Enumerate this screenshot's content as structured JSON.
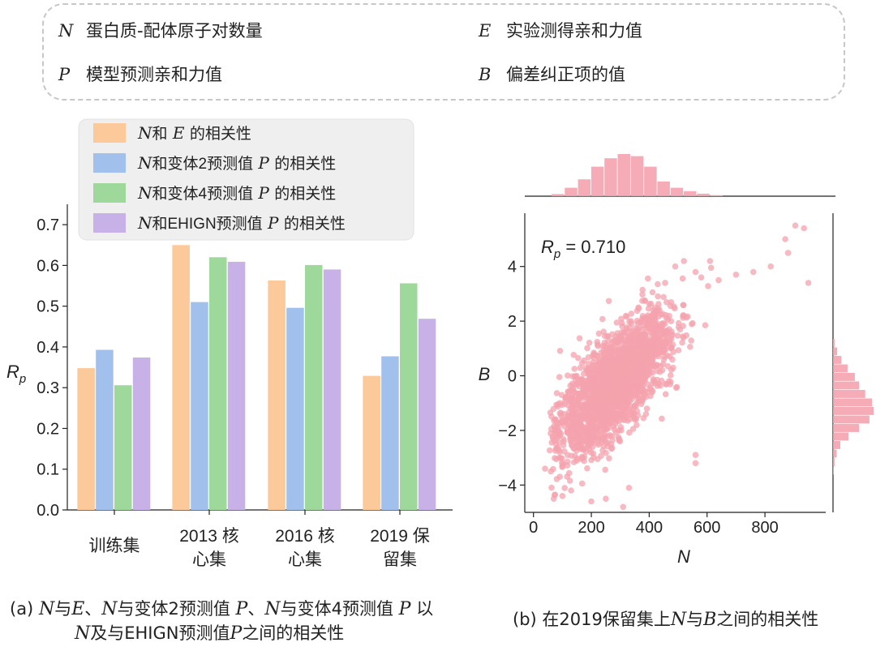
{
  "definitions": [
    {
      "symbol": "N",
      "text": "蛋白质-配体原子对数量"
    },
    {
      "symbol": "E",
      "text": "实验测得亲和力值"
    },
    {
      "symbol": "P",
      "text": "模型预测亲和力值"
    },
    {
      "symbol": "B",
      "text": "偏差纠正项的值"
    }
  ],
  "colors": {
    "orange": "#fcc99a",
    "blue": "#a1c0ec",
    "green": "#9ed89a",
    "purple": "#c7b1e6",
    "pink": "#f4a3ae"
  },
  "chart_data": [
    {
      "type": "bar",
      "ylabel": "R_p",
      "ylim": [
        0,
        0.75
      ],
      "yticks": [
        "0.0",
        "0.1",
        "0.2",
        "0.3",
        "0.4",
        "0.5",
        "0.6",
        "0.7"
      ],
      "categories": [
        {
          "line1": "训练集",
          "line2": ""
        },
        {
          "line1": "2013 核",
          "line2": "心集"
        },
        {
          "line1": "2016 核",
          "line2": "心集"
        },
        {
          "line1": "2019 保",
          "line2": "留集"
        }
      ],
      "series": [
        {
          "name": "和",
          "var1": "N",
          "var2": "E",
          "mid": "",
          "suffix": "的相关性",
          "color": "#fcc99a",
          "values": [
            0.348,
            0.65,
            0.563,
            0.329
          ]
        },
        {
          "name": "和变体2预测值",
          "var1": "N",
          "var2": "P",
          "mid": "",
          "suffix": "的相关性",
          "color": "#a1c0ec",
          "values": [
            0.393,
            0.51,
            0.496,
            0.377
          ]
        },
        {
          "name": "和变体4预测值",
          "var1": "N",
          "var2": "P",
          "mid": "",
          "suffix": "的相关性",
          "color": "#9ed89a",
          "values": [
            0.306,
            0.62,
            0.601,
            0.556
          ]
        },
        {
          "name": "和EHIGN预测值",
          "var1": "N",
          "var2": "P",
          "mid": "",
          "suffix": "的相关性",
          "color": "#c7b1e6",
          "values": [
            0.374,
            0.609,
            0.59,
            0.469
          ]
        }
      ],
      "legend_position": "top"
    },
    {
      "type": "scatter",
      "xlabel": "N",
      "ylabel": "B",
      "xlim": [
        -30,
        1010
      ],
      "ylim": [
        -5.0,
        5.95
      ],
      "xticks": [
        "0",
        "200",
        "400",
        "600",
        "800"
      ],
      "yticks": [
        "−4",
        "−2",
        "0",
        "2",
        "4"
      ],
      "annotation": {
        "label": "R_p",
        "value": "= 0.710"
      },
      "color": "#f4a3ae",
      "trend": {
        "slope": 0.0096,
        "intercept": -3.0
      },
      "points_count": 2200,
      "outliers": [
        [
          870,
          5.0
        ],
        [
          905,
          5.5
        ],
        [
          935,
          5.4
        ],
        [
          950,
          3.4
        ],
        [
          880,
          4.5
        ],
        [
          820,
          4.0
        ],
        [
          760,
          3.8
        ],
        [
          700,
          3.7
        ],
        [
          640,
          3.5
        ],
        [
          610,
          4.2
        ],
        [
          580,
          3.6
        ],
        [
          560,
          3.8
        ],
        [
          520,
          4.2
        ],
        [
          490,
          4.0
        ],
        [
          455,
          3.4
        ],
        [
          90,
          -3.0
        ],
        [
          70,
          -4.5
        ],
        [
          100,
          -4.4
        ],
        [
          130,
          -4.2
        ],
        [
          200,
          -4.6
        ],
        [
          250,
          -4.5
        ],
        [
          310,
          -4.8
        ],
        [
          330,
          -4.1
        ],
        [
          560,
          -2.9
        ],
        [
          560,
          -3.2
        ],
        [
          40,
          -3.4
        ],
        [
          60,
          -3.5
        ]
      ],
      "marginal_x_hist": [
        0.5,
        2.0,
        4.0,
        7.0,
        9.0,
        10.0,
        9.5,
        7.0,
        3.5,
        2.0,
        1.2,
        0.6,
        0.25
      ],
      "marginal_y_hist": [
        0.3,
        0.8,
        1.6,
        2.8,
        4.2,
        5.0,
        6.2,
        7.5,
        7.8,
        7.0,
        5.0,
        3.0,
        1.4,
        0.7,
        0.3,
        0.15
      ]
    }
  ],
  "captions": {
    "a": {
      "prefix": "(a) ",
      "v1": "N",
      "t1": "与",
      "v2": "E",
      "t2": "、",
      "v3": "N",
      "t3": "与变体2预测值 ",
      "v4": "P",
      "t4": "、",
      "v5": "N",
      "t5": "与变体4预测值 ",
      "v6": "P",
      "t6": " 以",
      "line2": {
        "v1": "N",
        "t1": "及与EHIGN预测值",
        "v2": "P",
        "t2": "之间的相关性"
      }
    },
    "b": {
      "prefix": "(b) 在2019保留集上",
      "v1": "N",
      "t1": "与",
      "v2": "B",
      "t2": "之间的相关性"
    }
  }
}
